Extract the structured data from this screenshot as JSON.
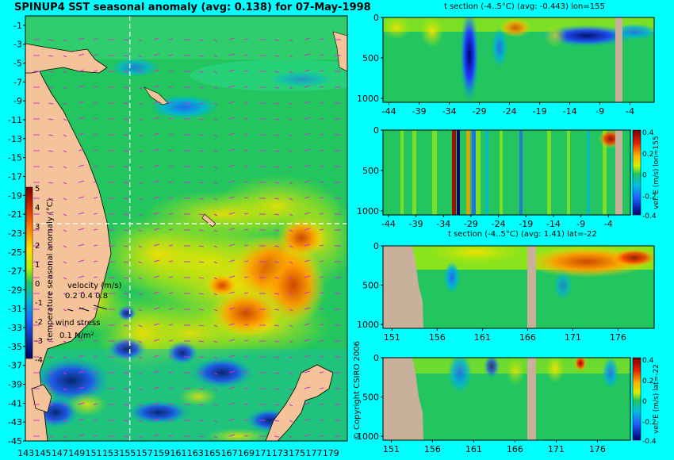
{
  "main_title": "SPINUP4 SST seasonal anomaly (avg: 0.138) for 07-May-1998",
  "copyright": "© Copyright CSIRO 2006",
  "colors": {
    "background": "#00ffff",
    "land": "#f5c39a",
    "section_land": "#c8b09a",
    "ocean_base": "#22c55e",
    "vector": "#cc33cc",
    "guide": "#ffffff"
  },
  "chart_data": [
    {
      "type": "heatmap",
      "title": "SPINUP4 SST seasonal anomaly (avg: 0.138) for 07-May-1998",
      "x_ticks": [
        "143",
        "145",
        "147",
        "149",
        "151",
        "153",
        "155",
        "157",
        "159",
        "161",
        "163",
        "165",
        "167",
        "169",
        "171",
        "173",
        "175",
        "177",
        "179"
      ],
      "y_ticks": [
        "-1",
        "-3",
        "-5",
        "-7",
        "-9",
        "-11",
        "-13",
        "-15",
        "-17",
        "-19",
        "-21",
        "-23",
        "-25",
        "-27",
        "-29",
        "-31",
        "-33",
        "-35",
        "-37",
        "-39",
        "-41",
        "-43",
        "-45"
      ],
      "xlim": [
        143,
        180
      ],
      "ylim": [
        -45,
        0
      ],
      "colorbar": {
        "label": "temperature seasonal anomaly (°C)",
        "ticks": [
          "5",
          "4",
          "3",
          "2",
          "1",
          "0",
          "-1",
          "-2",
          "-3",
          "-4"
        ],
        "range": [
          -4,
          5
        ]
      },
      "legend": {
        "velocity_label": "velocity (m/s)",
        "velocity_scale": "0.2 0.4 0.8",
        "wind_label": "wind stress",
        "wind_scale": "0.1 N/m²"
      },
      "guide_lines": {
        "longitude": 155,
        "latitude": -22
      }
    },
    {
      "type": "heatmap",
      "title": "t section (-4..5°C) (avg: -0.443) lon=155",
      "x_ticks": [
        "-44",
        "-39",
        "-34",
        "-29",
        "-24",
        "-19",
        "-14",
        "-9",
        "-4"
      ],
      "y_ticks": [
        "0",
        "500",
        "1000"
      ],
      "xlim": [
        -45,
        0
      ],
      "ylim": [
        1050,
        0
      ]
    },
    {
      "type": "heatmap",
      "title": "",
      "x_ticks": [
        "-44",
        "-39",
        "-34",
        "-29",
        "-24",
        "-19",
        "-14",
        "-9",
        "-4"
      ],
      "y_ticks": [
        "0",
        "500",
        "1000"
      ],
      "xlim": [
        -45,
        0
      ],
      "ylim": [
        1050,
        0
      ],
      "colorbar": {
        "label": "vel. E (m/s) lon=155",
        "ticks": [
          "0.4",
          "0.2",
          "0",
          "-0.2",
          "-0.4"
        ],
        "range": [
          -0.4,
          0.4
        ]
      }
    },
    {
      "type": "heatmap",
      "title": "t section (-4..5°C) (avg: 1.41) lat=-22",
      "x_ticks": [
        "151",
        "156",
        "161",
        "166",
        "171",
        "176"
      ],
      "y_ticks": [
        "0",
        "500",
        "1000"
      ],
      "xlim": [
        150,
        180
      ],
      "ylim": [
        1050,
        0
      ]
    },
    {
      "type": "heatmap",
      "title": "",
      "x_ticks": [
        "151",
        "156",
        "161",
        "166",
        "171",
        "176"
      ],
      "y_ticks": [
        "0",
        "500",
        "1000"
      ],
      "xlim": [
        150,
        180
      ],
      "ylim": [
        1050,
        0
      ],
      "colorbar": {
        "label": "vel. E (m/s) lat=-22",
        "ticks": [
          "0.4",
          "0.2",
          "0",
          "-0.2",
          "-0.4"
        ],
        "range": [
          -0.4,
          0.4
        ]
      }
    }
  ]
}
